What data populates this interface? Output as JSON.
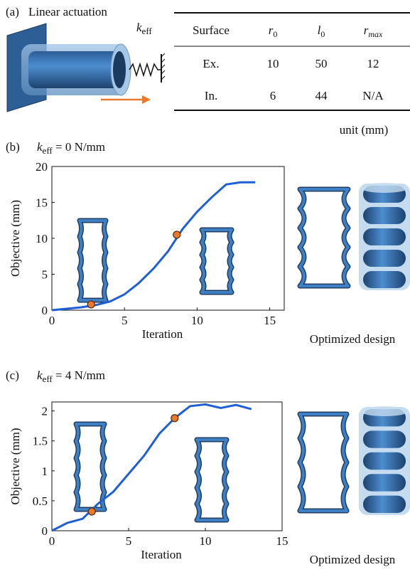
{
  "panel_a": {
    "label": "(a)",
    "title": "Linear actuation",
    "spring_label": {
      "base": "k",
      "sub": "eff"
    },
    "table": {
      "header": [
        "Surface",
        {
          "base": "r",
          "sub": "0"
        },
        {
          "base": "l",
          "sub": "0"
        },
        {
          "base": "r",
          "sub": "max"
        }
      ],
      "rows": [
        [
          "Ex.",
          "10",
          "50",
          "12"
        ],
        [
          "In.",
          "6",
          "44",
          "N/A"
        ]
      ],
      "note": "unit (mm)"
    }
  },
  "chart_data": [
    {
      "type": "line",
      "label": "(b)",
      "title": {
        "base": "k",
        "sub": "eff",
        "rest": " = 0 N/mm"
      },
      "x_label": "Iteration",
      "y_label": "Objective (mm)",
      "caption": "Optimized design",
      "x": [
        0,
        1,
        2,
        3,
        4,
        5,
        6,
        7,
        8,
        9,
        10,
        11,
        12,
        13,
        14
      ],
      "series": [
        {
          "color": "#1f5fd6",
          "values": [
            0,
            0.2,
            0.4,
            0.7,
            1.2,
            2.2,
            3.8,
            5.8,
            8.2,
            11.3,
            13.7,
            15.7,
            17.5,
            17.8,
            17.8
          ]
        }
      ],
      "points": {
        "color": "#e8792b",
        "x": [
          2.7,
          8.6
        ],
        "values": [
          0.8,
          10.5
        ]
      },
      "xlim": [
        0,
        16
      ],
      "ylim": [
        0,
        20
      ],
      "xticks": [
        0,
        5,
        10,
        15
      ],
      "yticks": [
        0,
        5,
        10,
        15,
        20
      ]
    },
    {
      "type": "line",
      "label": "(c)",
      "title": {
        "base": "k",
        "sub": "eff",
        "rest": " = 4 N/mm"
      },
      "x_label": "Iteration",
      "y_label": "Objective (mm)",
      "caption": "Optimized design",
      "x": [
        0,
        1,
        2,
        3,
        4,
        5,
        6,
        7,
        8,
        9,
        10,
        11,
        12,
        13
      ],
      "series": [
        {
          "color": "#1f5fd6",
          "values": [
            0,
            0.13,
            0.2,
            0.45,
            0.65,
            0.95,
            1.25,
            1.62,
            1.88,
            2.08,
            2.11,
            2.05,
            2.1,
            2.03
          ]
        }
      ],
      "points": {
        "color": "#e8792b",
        "x": [
          2.6,
          8
        ],
        "values": [
          0.32,
          1.88
        ]
      },
      "xlim": [
        0,
        15
      ],
      "ylim": [
        0,
        2.15
      ],
      "xticks": [
        0,
        5,
        10,
        15
      ],
      "yticks": [
        0,
        0.5,
        1,
        1.5,
        2
      ]
    }
  ]
}
